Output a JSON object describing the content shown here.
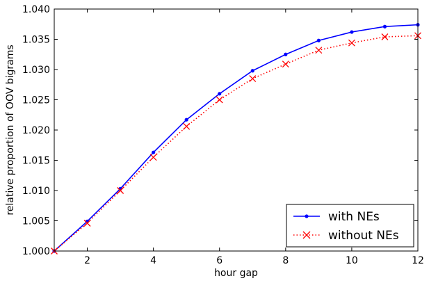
{
  "chart_data": {
    "type": "line",
    "title": "",
    "xlabel": "hour gap",
    "ylabel": "relative proportion of OOV bigrams",
    "xlim": [
      1,
      12
    ],
    "ylim": [
      1.0,
      1.04
    ],
    "xticks": [
      2,
      4,
      6,
      8,
      10,
      12
    ],
    "xtick_labels": [
      "2",
      "4",
      "6",
      "8",
      "10",
      "12"
    ],
    "yticks": [
      1.0,
      1.005,
      1.01,
      1.015,
      1.02,
      1.025,
      1.03,
      1.035,
      1.04
    ],
    "ytick_labels": [
      "1.000",
      "1.005",
      "1.010",
      "1.015",
      "1.020",
      "1.025",
      "1.030",
      "1.035",
      "1.040"
    ],
    "grid": false,
    "legend_position": "bottom-right",
    "x": [
      1,
      2,
      3,
      4,
      5,
      6,
      7,
      8,
      9,
      10,
      11,
      12
    ],
    "series": [
      {
        "name": "with NEs",
        "values": [
          1.0,
          1.0049,
          1.0103,
          1.0163,
          1.0217,
          1.026,
          1.0298,
          1.0325,
          1.0348,
          1.0362,
          1.0371,
          1.0374
        ],
        "color": "#0000ff",
        "line_style": "solid",
        "marker": "dot"
      },
      {
        "name": "without NEs",
        "values": [
          1.0,
          1.0046,
          1.01,
          1.0155,
          1.0206,
          1.025,
          1.0285,
          1.0309,
          1.0332,
          1.0344,
          1.0354,
          1.0356
        ],
        "color": "#ff0000",
        "line_style": "dotted",
        "marker": "x"
      }
    ]
  }
}
